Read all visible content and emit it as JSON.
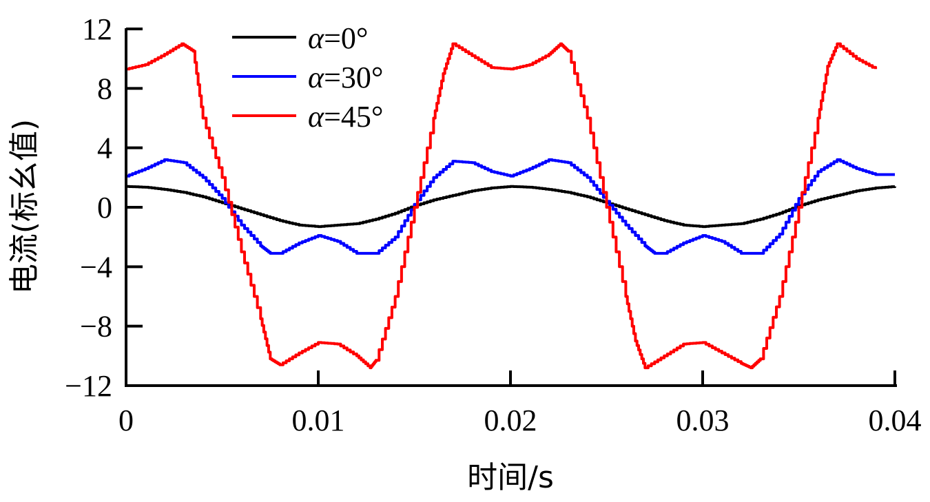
{
  "chart_data": {
    "type": "line",
    "title": "",
    "xlabel": "时间/s",
    "ylabel": "电流(标幺值)",
    "xlim": [
      0,
      0.04
    ],
    "ylim": [
      -12,
      12
    ],
    "xticks": [
      0,
      0.01,
      0.02,
      0.03,
      0.04
    ],
    "xtick_labels": [
      "0",
      "0.01",
      "0.02",
      "0.03",
      "0.04"
    ],
    "yticks": [
      12,
      8,
      4,
      0,
      -4,
      -8,
      -12
    ],
    "ytick_labels": [
      "12",
      "8",
      "4",
      "0",
      "−4",
      "−8",
      "−12"
    ],
    "grid": false,
    "legend_position": "upper-left-inside",
    "series": [
      {
        "name": "α=0°",
        "color": "#000000",
        "x": [
          0,
          0.001,
          0.002,
          0.003,
          0.004,
          0.005,
          0.006,
          0.007,
          0.008,
          0.009,
          0.01,
          0.011,
          0.012,
          0.013,
          0.014,
          0.015,
          0.016,
          0.017,
          0.018,
          0.019,
          0.02,
          0.021,
          0.022,
          0.023,
          0.024,
          0.025,
          0.026,
          0.027,
          0.028,
          0.029,
          0.03,
          0.031,
          0.032,
          0.033,
          0.034,
          0.035,
          0.036,
          0.037,
          0.038,
          0.039,
          0.04
        ],
        "values": [
          1.4,
          1.35,
          1.2,
          1.0,
          0.7,
          0.3,
          -0.1,
          -0.5,
          -0.9,
          -1.2,
          -1.3,
          -1.2,
          -1.1,
          -0.8,
          -0.4,
          0.1,
          0.5,
          0.8,
          1.1,
          1.3,
          1.4,
          1.35,
          1.2,
          1.0,
          0.7,
          0.3,
          -0.1,
          -0.5,
          -0.9,
          -1.2,
          -1.3,
          -1.2,
          -1.1,
          -0.8,
          -0.4,
          0.1,
          0.5,
          0.8,
          1.1,
          1.3,
          1.4
        ]
      },
      {
        "name": "α=30°",
        "color": "#0000ff",
        "x": [
          0,
          0.001,
          0.002,
          0.003,
          0.004,
          0.005,
          0.006,
          0.007,
          0.0075,
          0.008,
          0.009,
          0.01,
          0.011,
          0.012,
          0.013,
          0.014,
          0.015,
          0.016,
          0.017,
          0.018,
          0.019,
          0.02,
          0.021,
          0.022,
          0.023,
          0.024,
          0.025,
          0.026,
          0.027,
          0.0275,
          0.028,
          0.029,
          0.03,
          0.031,
          0.032,
          0.033,
          0.034,
          0.035,
          0.036,
          0.037,
          0.038,
          0.039,
          0.04
        ],
        "values": [
          2.1,
          2.6,
          3.2,
          3.0,
          2.0,
          0.6,
          -1.2,
          -2.6,
          -3.1,
          -3.1,
          -2.4,
          -1.9,
          -2.3,
          -3.1,
          -3.1,
          -2.0,
          0.2,
          2.0,
          3.1,
          3.0,
          2.4,
          2.1,
          2.6,
          3.2,
          3.0,
          2.0,
          0.4,
          -1.2,
          -2.6,
          -3.1,
          -3.1,
          -2.4,
          -1.9,
          -2.3,
          -3.1,
          -3.1,
          -1.8,
          0.6,
          2.4,
          3.2,
          2.6,
          2.2,
          2.2
        ]
      },
      {
        "name": "α=45°",
        "color": "#ff0000",
        "x": [
          0,
          0.001,
          0.002,
          0.0029,
          0.0035,
          0.004,
          0.005,
          0.006,
          0.007,
          0.0075,
          0.008,
          0.009,
          0.01,
          0.011,
          0.012,
          0.0127,
          0.013,
          0.014,
          0.015,
          0.016,
          0.0165,
          0.017,
          0.018,
          0.019,
          0.02,
          0.021,
          0.022,
          0.0226,
          0.023,
          0.024,
          0.025,
          0.026,
          0.0265,
          0.027,
          0.028,
          0.029,
          0.03,
          0.031,
          0.032,
          0.0325,
          0.033,
          0.034,
          0.035,
          0.036,
          0.0365,
          0.037,
          0.038,
          0.039
        ],
        "values": [
          9.3,
          9.6,
          10.3,
          11.0,
          10.5,
          6.0,
          2.0,
          -3.0,
          -7.5,
          -10.2,
          -10.6,
          -9.8,
          -9.1,
          -9.2,
          -10.0,
          -10.8,
          -10.3,
          -6.0,
          0.0,
          6.0,
          9.0,
          11.0,
          10.2,
          9.4,
          9.3,
          9.6,
          10.3,
          11.0,
          10.5,
          6.0,
          0.0,
          -6.0,
          -9.0,
          -10.8,
          -10.0,
          -9.2,
          -9.1,
          -9.8,
          -10.5,
          -10.8,
          -10.2,
          -6.0,
          0.0,
          6.0,
          9.5,
          11.0,
          10.0,
          9.3
        ]
      }
    ]
  },
  "legend": {
    "items": [
      {
        "label_alpha": "α",
        "label_rest": "=0°",
        "color": "#000000"
      },
      {
        "label_alpha": "α",
        "label_rest": "=30°",
        "color": "#0000ff"
      },
      {
        "label_alpha": "α",
        "label_rest": "=45°",
        "color": "#ff0000"
      }
    ]
  },
  "axes": {
    "xlabel": "时间/s",
    "ylabel": "电流(标幺值)"
  }
}
